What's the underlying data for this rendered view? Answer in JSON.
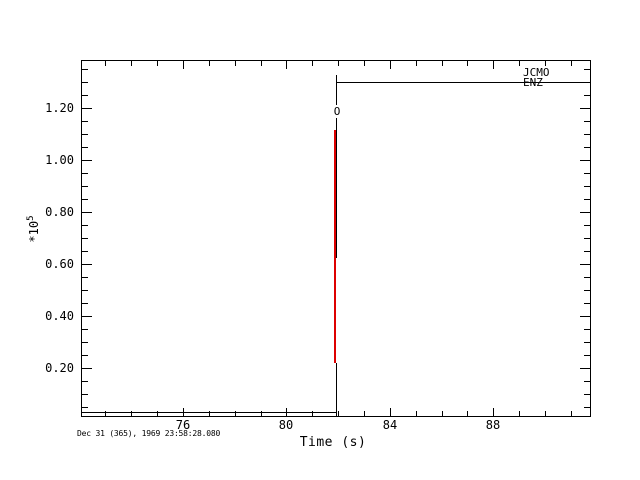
{
  "window": {
    "background": "#ffffff"
  },
  "colors": {
    "axis": "#000000",
    "trace": "#000000",
    "origin_marker": "#dd0000",
    "text": "#000000"
  },
  "header_labels": {
    "station": "JCMO",
    "channel": "ENZ"
  },
  "origin_marker": {
    "label": "O"
  },
  "x_axis": {
    "label": "Time (s)",
    "major_tick_labels": [
      "76",
      "80",
      "84",
      "88"
    ]
  },
  "y_axis": {
    "scale_label": "*10",
    "scale_exponent": "5",
    "major_tick_labels": [
      "0.20",
      "0.40",
      "0.60",
      "0.80",
      "1.00",
      "1.20"
    ]
  },
  "footer": {
    "start_time": "Dec 31 (365), 1969 23:58:28.080"
  },
  "chart_data": {
    "type": "line",
    "title": "",
    "xlabel": "Time (s)",
    "ylabel": "*10^5",
    "xlim": [
      72.1,
      91.8
    ],
    "ylim_x1e5": [
      0.01,
      1.38
    ],
    "x_ticks_major": [
      76,
      80,
      84,
      88
    ],
    "x_minor_step": 1,
    "y_ticks_major_x1e5": [
      0.2,
      0.4,
      0.6,
      0.8,
      1.0,
      1.2
    ],
    "y_minor_step_x1e5": 0.05,
    "grid": false,
    "legend_position": "top-right station/channel text",
    "series": [
      {
        "name": "JCMO ENZ",
        "color": "#000000",
        "description": "step function: flat near zero, steps up at t≈81.9 s to 1.30e5 and stays flat",
        "points_x1e5": [
          [
            72.1,
            0.03
          ],
          [
            81.9,
            0.03
          ],
          [
            81.9,
            1.3
          ],
          [
            91.8,
            1.3
          ]
        ]
      }
    ],
    "markers": [
      {
        "label": "O",
        "time": 81.85,
        "color": "#dd0000",
        "v_from_x1e5": 0.22,
        "v_to_x1e5": 1.12
      }
    ]
  }
}
